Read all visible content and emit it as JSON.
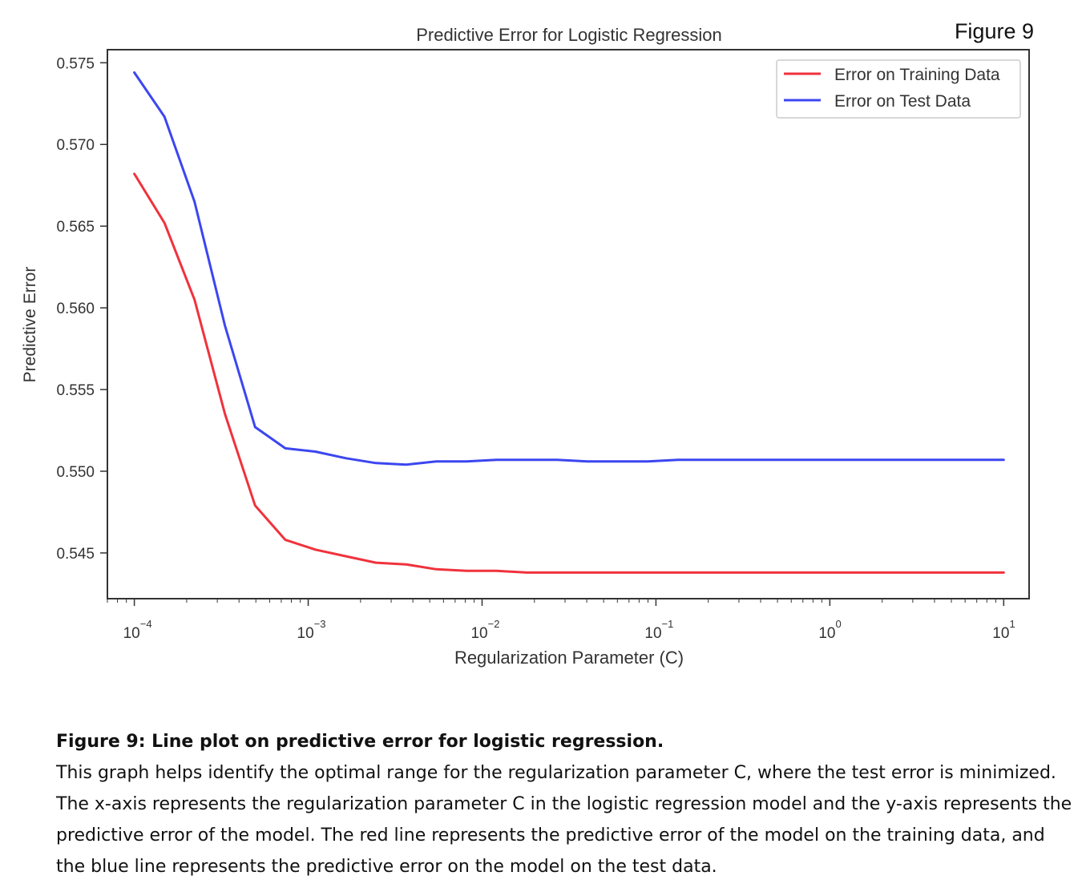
{
  "figure_label": "Figure 9",
  "caption": {
    "title": "Figure 9: Line plot on predictive error for logistic regression.",
    "body": "This graph helps identify the optimal range for the regularization parameter C, where the test error is minimized. The x-axis represents the regularization parameter C in the logistic regression model and the y-axis represents the predictive error of the model. The red line represents the predictive error of the model on the training data, and the blue line represents the predictive error on the model on the test data."
  },
  "chart_data": {
    "type": "line",
    "title": "Predictive Error for Logistic Regression",
    "xlabel": "Regularization Parameter (C)",
    "ylabel": "Predictive Error",
    "x_scale": "log",
    "xlim": [
      7e-05,
      14
    ],
    "ylim": [
      0.5422,
      0.5758
    ],
    "yticks": [
      0.545,
      0.55,
      0.555,
      0.56,
      0.565,
      0.57,
      0.575
    ],
    "ytick_labels": [
      "0.545",
      "0.550",
      "0.555",
      "0.560",
      "0.565",
      "0.570",
      "0.575"
    ],
    "xtick_labels": [
      {
        "base": "10",
        "exp": "−4"
      },
      {
        "base": "10",
        "exp": "−3"
      },
      {
        "base": "10",
        "exp": "−2"
      },
      {
        "base": "10",
        "exp": "−1"
      },
      {
        "base": "10",
        "exp": "0"
      },
      {
        "base": "10",
        "exp": "1"
      }
    ],
    "legend_position": "top-right",
    "grid": false,
    "series": [
      {
        "name": "Error on Training Data",
        "color": "#f0323c",
        "x": [
          0.0001,
          0.000149,
          0.000222,
          0.000332,
          0.000495,
          0.000739,
          0.0011,
          0.00164,
          0.00245,
          0.00365,
          0.00545,
          0.00813,
          0.0121,
          0.0181,
          0.027,
          0.0403,
          0.0601,
          0.0897,
          0.134,
          0.2,
          0.298,
          0.445,
          0.664,
          0.991,
          1.48,
          2.21,
          3.29,
          4.91,
          7.33,
          10
        ],
        "y": [
          0.5682,
          0.5652,
          0.5605,
          0.5535,
          0.5479,
          0.5458,
          0.5452,
          0.5448,
          0.5444,
          0.5443,
          0.544,
          0.5439,
          0.5439,
          0.5438,
          0.5438,
          0.5438,
          0.5438,
          0.5438,
          0.5438,
          0.5438,
          0.5438,
          0.5438,
          0.5438,
          0.5438,
          0.5438,
          0.5438,
          0.5438,
          0.5438,
          0.5438,
          0.5438
        ]
      },
      {
        "name": "Error on Test Data",
        "color": "#3c46f0",
        "x": [
          0.0001,
          0.000149,
          0.000222,
          0.000332,
          0.000495,
          0.000739,
          0.0011,
          0.00164,
          0.00245,
          0.00365,
          0.00545,
          0.00813,
          0.0121,
          0.0181,
          0.027,
          0.0403,
          0.0601,
          0.0897,
          0.134,
          0.2,
          0.298,
          0.445,
          0.664,
          0.991,
          1.48,
          2.21,
          3.29,
          4.91,
          7.33,
          10
        ],
        "y": [
          0.5744,
          0.5717,
          0.5665,
          0.5589,
          0.5527,
          0.5514,
          0.5512,
          0.5508,
          0.5505,
          0.5504,
          0.5506,
          0.5506,
          0.5507,
          0.5507,
          0.5507,
          0.5506,
          0.5506,
          0.5506,
          0.5507,
          0.5507,
          0.5507,
          0.5507,
          0.5507,
          0.5507,
          0.5507,
          0.5507,
          0.5507,
          0.5507,
          0.5507,
          0.5507
        ]
      }
    ]
  }
}
